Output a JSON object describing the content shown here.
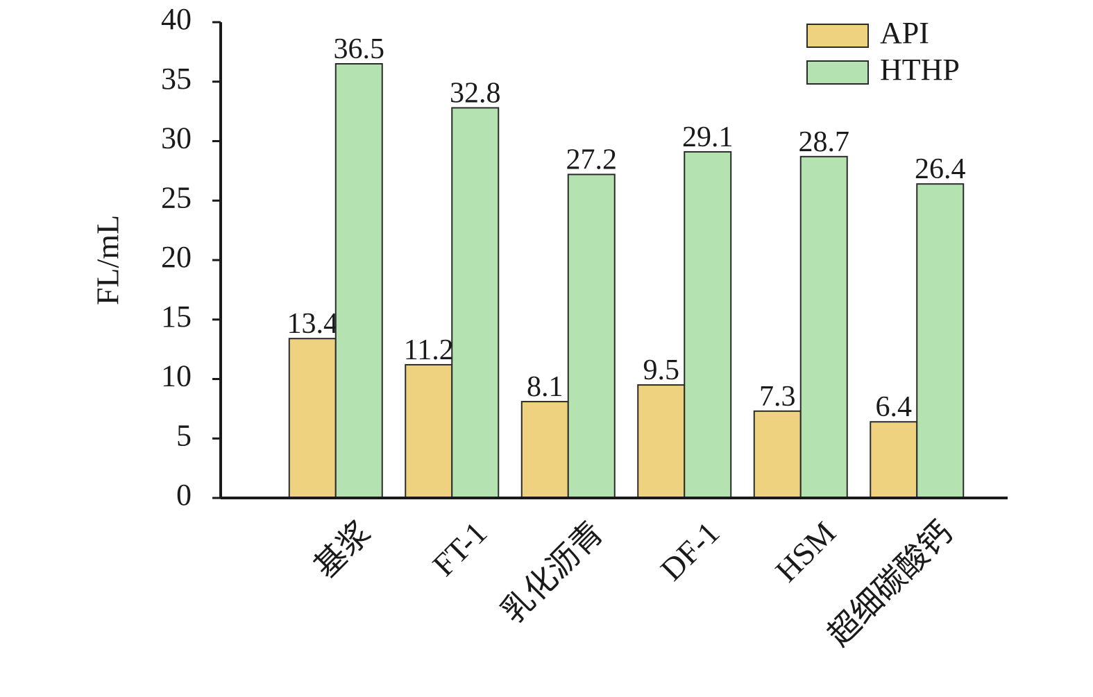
{
  "chart_data": {
    "type": "bar",
    "y_label": "FL/mL",
    "categories": [
      "基浆",
      "FT-1",
      "乳化沥青",
      "DF-1",
      "HSM",
      "超细碳酸钙"
    ],
    "series": [
      {
        "name": "API",
        "color": "#efd280",
        "values": [
          13.4,
          11.2,
          8.1,
          9.5,
          7.3,
          6.4
        ]
      },
      {
        "name": "HTHP",
        "color": "#b4e3b1",
        "values": [
          36.5,
          32.8,
          27.2,
          29.1,
          28.7,
          26.4
        ]
      }
    ],
    "ylim": [
      0,
      40
    ],
    "yticks": [
      0,
      5,
      10,
      15,
      20,
      25,
      30,
      35,
      40
    ],
    "legend": "top-right"
  }
}
